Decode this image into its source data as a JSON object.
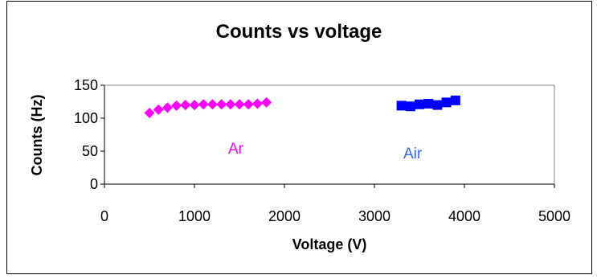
{
  "chart_data": {
    "type": "scatter",
    "title": "Counts vs voltage",
    "xlabel": "Voltage (V)",
    "ylabel": "Counts (Hz)",
    "xlim": [
      0,
      5000
    ],
    "ylim": [
      0,
      150
    ],
    "xticks": [
      0,
      1000,
      2000,
      3000,
      4000,
      5000
    ],
    "yticks": [
      0,
      50,
      100,
      150
    ],
    "grid": false,
    "legend": "none",
    "series": [
      {
        "name": "Ar",
        "marker": "diamond",
        "color": "#ff00ff",
        "x": [
          500,
          600,
          700,
          800,
          900,
          1000,
          1100,
          1200,
          1300,
          1400,
          1500,
          1600,
          1700,
          1800
        ],
        "y": [
          108,
          113,
          116,
          119,
          120,
          120,
          121,
          121,
          121,
          121,
          121,
          121,
          122,
          124
        ]
      },
      {
        "name": "Air",
        "marker": "square",
        "color": "#0000ff",
        "x": [
          3300,
          3400,
          3500,
          3600,
          3700,
          3800,
          3900
        ],
        "y": [
          119,
          118,
          121,
          122,
          120,
          124,
          127
        ]
      }
    ]
  }
}
